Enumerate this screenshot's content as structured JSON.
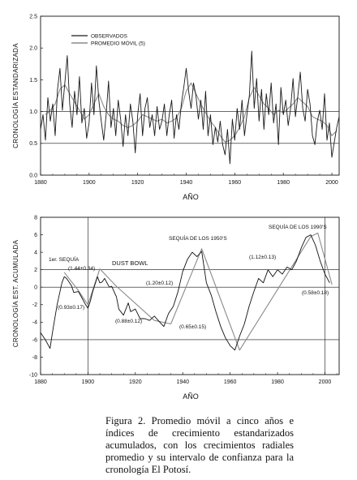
{
  "chart_data": [
    {
      "type": "line",
      "ylabel": "CRONOLOGÍA ESTANDARIZADA",
      "xlabel": "AÑO",
      "xlim": [
        1880,
        2003
      ],
      "ylim": [
        0.0,
        2.5
      ],
      "xticks": [
        "1880",
        "1900",
        "1920",
        "1940",
        "1960",
        "1980",
        "2000"
      ],
      "yticks": [
        "0.0",
        "0.5",
        "1.0",
        "1.5",
        "2.0",
        "2.5"
      ],
      "grid": "horizontal at 0.5 and 1.0",
      "legend_position": "top-left",
      "series": [
        {
          "name": "OBSERVADOS",
          "color": "#1a1a1a",
          "x": [
            1880,
            1881,
            1882,
            1883,
            1884,
            1885,
            1886,
            1887,
            1888,
            1889,
            1890,
            1891,
            1892,
            1893,
            1894,
            1895,
            1896,
            1897,
            1898,
            1899,
            1900,
            1901,
            1902,
            1903,
            1904,
            1905,
            1906,
            1907,
            1908,
            1909,
            1910,
            1911,
            1912,
            1913,
            1914,
            1915,
            1916,
            1917,
            1918,
            1919,
            1920,
            1921,
            1922,
            1923,
            1924,
            1925,
            1926,
            1927,
            1928,
            1929,
            1930,
            1931,
            1932,
            1933,
            1934,
            1935,
            1936,
            1937,
            1938,
            1939,
            1940,
            1941,
            1942,
            1943,
            1944,
            1945,
            1946,
            1947,
            1948,
            1949,
            1950,
            1951,
            1952,
            1953,
            1954,
            1955,
            1956,
            1957,
            1958,
            1959,
            1960,
            1961,
            1962,
            1963,
            1964,
            1965,
            1966,
            1967,
            1968,
            1969,
            1970,
            1971,
            1972,
            1973,
            1974,
            1975,
            1976,
            1977,
            1978,
            1979,
            1980,
            1981,
            1982,
            1983,
            1984,
            1985,
            1986,
            1987,
            1988,
            1989,
            1990,
            1991,
            1992,
            1993,
            1994,
            1995,
            1996,
            1997,
            1998,
            1999,
            2000,
            2001,
            2002,
            2003
          ],
          "values": [
            0.72,
            0.95,
            0.55,
            1.22,
            0.85,
            1.12,
            0.62,
            1.35,
            1.68,
            1.02,
            1.45,
            1.88,
            1.12,
            0.75,
            1.32,
            0.95,
            1.55,
            0.82,
            1.05,
            0.58,
            0.82,
            1.45,
            0.95,
            1.72,
            1.18,
            0.85,
            0.55,
            0.95,
            1.48,
            0.75,
            1.05,
            0.62,
            1.18,
            0.88,
            0.45,
            0.95,
            0.62,
            1.12,
            0.85,
            0.35,
            0.95,
            1.28,
            0.62,
            1.05,
            1.22,
            0.75,
            0.95,
            0.62,
            1.08,
            0.72,
            0.85,
            1.12,
            0.62,
            0.95,
            1.18,
            0.58,
            0.95,
            0.72,
            1.12,
            1.38,
            1.68,
            1.32,
            1.05,
            1.45,
            1.25,
            0.88,
            1.18,
            0.72,
            1.32,
            0.62,
            0.95,
            0.48,
            0.75,
            0.52,
            0.85,
            0.48,
            0.32,
            0.72,
            0.18,
            0.88,
            0.55,
            1.05,
            0.72,
            1.18,
            0.62,
            0.95,
            1.25,
            1.95,
            1.05,
            1.52,
            0.85,
            1.35,
            0.72,
            1.28,
            0.95,
            1.45,
            0.82,
            1.12,
            0.48,
            1.38,
            0.95,
            1.18,
            0.78,
            1.05,
            1.52,
            0.92,
            1.25,
            1.62,
            1.05,
            0.85,
            1.35,
            1.12,
            0.62,
            0.48,
            0.85,
            1.02,
            0.72,
            1.28,
            0.55,
            0.82,
            0.28,
            0.52,
            0.75,
            0.92
          ]
        },
        {
          "name": "PROMEDIO MÓVIL (5)",
          "color": "#8a8a8a",
          "x": [
            1882,
            1884,
            1886,
            1888,
            1890,
            1892,
            1894,
            1896,
            1898,
            1900,
            1902,
            1904,
            1906,
            1908,
            1910,
            1912,
            1914,
            1916,
            1918,
            1920,
            1922,
            1924,
            1926,
            1928,
            1930,
            1932,
            1934,
            1936,
            1938,
            1940,
            1942,
            1944,
            1946,
            1948,
            1950,
            1952,
            1954,
            1956,
            1958,
            1960,
            1962,
            1964,
            1966,
            1968,
            1970,
            1972,
            1974,
            1976,
            1978,
            1980,
            1982,
            1984,
            1986,
            1988,
            1990,
            1992,
            1994,
            1996,
            1998,
            2000,
            2002
          ],
          "values": [
            0.95,
            1.02,
            1.12,
            1.35,
            1.42,
            1.28,
            1.15,
            1.02,
            0.88,
            0.95,
            1.12,
            1.28,
            1.08,
            0.95,
            0.88,
            0.85,
            0.78,
            0.75,
            0.78,
            0.85,
            0.95,
            0.92,
            0.88,
            0.85,
            0.88,
            0.82,
            0.85,
            0.9,
            1.05,
            1.32,
            1.45,
            1.28,
            1.12,
            0.98,
            0.85,
            0.75,
            0.62,
            0.52,
            0.55,
            0.62,
            0.75,
            0.92,
            1.22,
            1.38,
            1.25,
            1.12,
            1.05,
            0.95,
            1.02,
            0.98,
            1.05,
            1.12,
            1.22,
            1.15,
            1.08,
            0.92,
            0.88,
            0.85,
            0.78,
            0.62,
            0.7
          ]
        }
      ]
    },
    {
      "type": "line",
      "ylabel": "CRONOLOGÍA EST. ACUMULADA",
      "xlabel": "AÑO",
      "xlim": [
        1880,
        2006
      ],
      "ylim": [
        -10,
        8
      ],
      "xticks": [
        "1880",
        "1900",
        "1920",
        "1940",
        "1960",
        "1980",
        "2000"
      ],
      "yticks": [
        "8",
        "6",
        "4",
        "2",
        "0",
        "-2",
        "-4",
        "-6",
        "-8",
        "-10"
      ],
      "grid": "horizontal at 2, 0 and -6; vertical at 1900 and 2000",
      "series": [
        {
          "color": "#111111",
          "x": [
            1880,
            1882,
            1884,
            1885,
            1887,
            1889,
            1890,
            1891,
            1893,
            1894,
            1896,
            1898,
            1899,
            1900,
            1901,
            1902,
            1904,
            1905,
            1906,
            1907,
            1909,
            1910,
            1912,
            1913,
            1915,
            1917,
            1918,
            1920,
            1922,
            1924,
            1926,
            1928,
            1930,
            1932,
            1934,
            1936,
            1938,
            1940,
            1942,
            1944,
            1946,
            1948,
            1950,
            1952,
            1954,
            1956,
            1958,
            1960,
            1962,
            1964,
            1966,
            1968,
            1970,
            1972,
            1974,
            1976,
            1978,
            1980,
            1982,
            1984,
            1986,
            1988,
            1990,
            1992,
            1994,
            1996,
            1998,
            2000,
            2002
          ],
          "values": [
            -5.2,
            -6.0,
            -7.0,
            -5.2,
            -2.0,
            0.5,
            1.2,
            1.0,
            0.2,
            -0.6,
            -0.5,
            -1.5,
            -2.0,
            -2.4,
            -1.6,
            -0.5,
            1.2,
            0.5,
            0.6,
            1.0,
            0.0,
            0.1,
            -1.1,
            -2.5,
            -3.2,
            -1.8,
            -2.8,
            -2.5,
            -3.6,
            -3.6,
            -3.8,
            -3.3,
            -3.9,
            -4.5,
            -3.0,
            -2.2,
            -0.5,
            1.8,
            3.2,
            4.0,
            3.5,
            4.1,
            0.5,
            -0.9,
            -2.8,
            -4.5,
            -5.8,
            -6.7,
            -7.2,
            -5.6,
            -4.2,
            -2.2,
            -0.5,
            1.0,
            0.5,
            2.0,
            1.2,
            2.0,
            1.5,
            2.3,
            2.0,
            3.0,
            4.5,
            5.7,
            6.0,
            4.8,
            3.0,
            1.5,
            0.5
          ]
        },
        {
          "color": "#8a8a8a",
          "x": [
            1890,
            1896,
            1900,
            1905,
            1912,
            1928,
            1935,
            1948,
            1964,
            1994,
            1997,
            2003
          ],
          "values": [
            1.7,
            -0.4,
            -2.0,
            2.1,
            0.1,
            -3.8,
            -4.2,
            4.4,
            -7.2,
            5.8,
            6.2,
            0.3
          ]
        }
      ],
      "annotations": [
        "1er. SEQUÍA",
        "(1.44±0.34)",
        "(0.93±0.17)",
        "DUST BOWL",
        "(0.88±0.12)",
        "(1.20±0.12)",
        "SEQUÍA DE LOS 1950'S",
        "(0.65±0.15)",
        "(1.12±0.13)",
        "SEQUÍA DE LOS 1990'S",
        "(0.58±0.18)"
      ]
    }
  ],
  "caption": "Figura 2. Promedio móvil a cinco años e índices de crecimiento estandarizados acumulados, con los crecimientos radiales promedio y su intervalo de confianza para la cronología El Potosí."
}
